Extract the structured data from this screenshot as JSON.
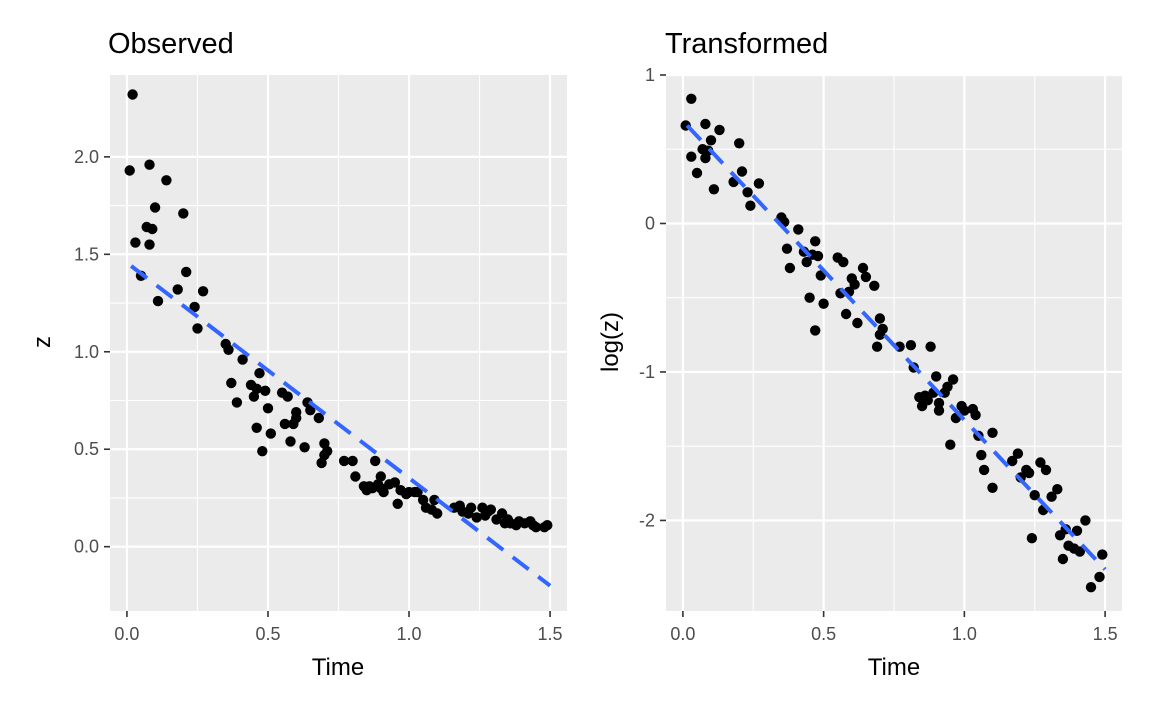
{
  "chart_data": [
    {
      "type": "scatter",
      "title": "Observed",
      "xlabel": "Time",
      "ylabel": "z",
      "xlim": [
        -0.06,
        1.56
      ],
      "ylim": [
        -0.33,
        2.42
      ],
      "x_ticks": [
        0.0,
        0.5,
        1.0,
        1.5
      ],
      "x_tick_labels": [
        "0.0",
        "0.5",
        "1.0",
        "1.5"
      ],
      "y_ticks": [
        0.0,
        0.5,
        1.0,
        1.5,
        2.0
      ],
      "y_tick_labels": [
        "0.0",
        "0.5",
        "1.0",
        "1.5",
        "2.0"
      ],
      "grid": true,
      "fit_line": {
        "style": "dashed",
        "color": "#3366FF",
        "x": [
          0.015,
          1.5
        ],
        "y": [
          1.44,
          -0.2
        ]
      },
      "points": [
        [
          0.01,
          1.93
        ],
        [
          0.02,
          2.32
        ],
        [
          0.03,
          1.56
        ],
        [
          0.05,
          1.39
        ],
        [
          0.07,
          1.64
        ],
        [
          0.08,
          1.96
        ],
        [
          0.08,
          1.55
        ],
        [
          0.09,
          1.63
        ],
        [
          0.1,
          1.74
        ],
        [
          0.11,
          1.26
        ],
        [
          0.14,
          1.88
        ],
        [
          0.18,
          1.32
        ],
        [
          0.2,
          1.71
        ],
        [
          0.21,
          1.41
        ],
        [
          0.24,
          1.23
        ],
        [
          0.25,
          1.12
        ],
        [
          0.27,
          1.31
        ],
        [
          0.35,
          1.04
        ],
        [
          0.36,
          1.01
        ],
        [
          0.37,
          0.84
        ],
        [
          0.39,
          0.74
        ],
        [
          0.41,
          0.96
        ],
        [
          0.44,
          0.83
        ],
        [
          0.45,
          0.77
        ],
        [
          0.46,
          0.61
        ],
        [
          0.46,
          0.81
        ],
        [
          0.47,
          0.89
        ],
        [
          0.48,
          0.49
        ],
        [
          0.49,
          0.8
        ],
        [
          0.5,
          0.71
        ],
        [
          0.51,
          0.58
        ],
        [
          0.55,
          0.79
        ],
        [
          0.56,
          0.63
        ],
        [
          0.57,
          0.77
        ],
        [
          0.58,
          0.54
        ],
        [
          0.59,
          0.63
        ],
        [
          0.6,
          0.69
        ],
        [
          0.6,
          0.66
        ],
        [
          0.63,
          0.51
        ],
        [
          0.64,
          0.74
        ],
        [
          0.65,
          0.7
        ],
        [
          0.68,
          0.66
        ],
        [
          0.69,
          0.43
        ],
        [
          0.7,
          0.53
        ],
        [
          0.7,
          0.47
        ],
        [
          0.71,
          0.49
        ],
        [
          0.77,
          0.44
        ],
        [
          0.8,
          0.44
        ],
        [
          0.81,
          0.36
        ],
        [
          0.84,
          0.31
        ],
        [
          0.85,
          0.29
        ],
        [
          0.86,
          0.31
        ],
        [
          0.87,
          0.3
        ],
        [
          0.88,
          0.44
        ],
        [
          0.89,
          0.32
        ],
        [
          0.9,
          0.36
        ],
        [
          0.9,
          0.3
        ],
        [
          0.91,
          0.28
        ],
        [
          0.93,
          0.32
        ],
        [
          0.95,
          0.33
        ],
        [
          0.96,
          0.22
        ],
        [
          0.97,
          0.29
        ],
        [
          0.99,
          0.27
        ],
        [
          1.0,
          0.28
        ],
        [
          1.02,
          0.28
        ],
        [
          1.03,
          0.28
        ],
        [
          1.05,
          0.24
        ],
        [
          1.06,
          0.2
        ],
        [
          1.08,
          0.19
        ],
        [
          1.09,
          0.24
        ],
        [
          1.1,
          0.17
        ],
        [
          1.16,
          0.2
        ],
        [
          1.18,
          0.21
        ],
        [
          1.19,
          0.18
        ],
        [
          1.21,
          0.17
        ],
        [
          1.22,
          0.2
        ],
        [
          1.24,
          0.15
        ],
        [
          1.26,
          0.2
        ],
        [
          1.27,
          0.16
        ],
        [
          1.28,
          0.18
        ],
        [
          1.29,
          0.19
        ],
        [
          1.31,
          0.14
        ],
        [
          1.33,
          0.17
        ],
        [
          1.34,
          0.12
        ],
        [
          1.35,
          0.14
        ],
        [
          1.36,
          0.12
        ],
        [
          1.38,
          0.11
        ],
        [
          1.39,
          0.13
        ],
        [
          1.41,
          0.12
        ],
        [
          1.43,
          0.13
        ],
        [
          1.44,
          0.11
        ],
        [
          1.45,
          0.1
        ],
        [
          1.48,
          0.1
        ],
        [
          1.49,
          0.11
        ]
      ]
    },
    {
      "type": "scatter",
      "title": "Transformed",
      "xlabel": "Time",
      "ylabel": "log(z)",
      "xlim": [
        -0.06,
        1.56
      ],
      "ylim": [
        -2.61,
        1.0
      ],
      "x_ticks": [
        0.0,
        0.5,
        1.0,
        1.5
      ],
      "x_tick_labels": [
        "0.0",
        "0.5",
        "1.0",
        "1.5"
      ],
      "y_ticks": [
        1,
        0,
        -1,
        -2
      ],
      "y_tick_labels": [
        "1",
        "0",
        "-1",
        "-2"
      ],
      "grid": true,
      "fit_line": {
        "style": "dashed",
        "color": "#3366FF",
        "x": [
          0.015,
          1.5
        ],
        "y": [
          0.66,
          -2.33
        ]
      },
      "points": [
        [
          0.01,
          0.66
        ],
        [
          0.03,
          0.84
        ],
        [
          0.03,
          0.45
        ],
        [
          0.05,
          0.34
        ],
        [
          0.07,
          0.5
        ],
        [
          0.08,
          0.67
        ],
        [
          0.08,
          0.44
        ],
        [
          0.09,
          0.49
        ],
        [
          0.1,
          0.56
        ],
        [
          0.11,
          0.23
        ],
        [
          0.13,
          0.63
        ],
        [
          0.18,
          0.28
        ],
        [
          0.2,
          0.54
        ],
        [
          0.21,
          0.35
        ],
        [
          0.23,
          0.21
        ],
        [
          0.24,
          0.12
        ],
        [
          0.27,
          0.27
        ],
        [
          0.35,
          0.04
        ],
        [
          0.36,
          0.01
        ],
        [
          0.37,
          -0.17
        ],
        [
          0.38,
          -0.3
        ],
        [
          0.41,
          -0.04
        ],
        [
          0.43,
          -0.19
        ],
        [
          0.44,
          -0.26
        ],
        [
          0.45,
          -0.5
        ],
        [
          0.46,
          -0.21
        ],
        [
          0.47,
          -0.12
        ],
        [
          0.47,
          -0.72
        ],
        [
          0.48,
          -0.22
        ],
        [
          0.49,
          -0.35
        ],
        [
          0.5,
          -0.54
        ],
        [
          0.55,
          -0.23
        ],
        [
          0.56,
          -0.47
        ],
        [
          0.57,
          -0.26
        ],
        [
          0.58,
          -0.61
        ],
        [
          0.59,
          -0.46
        ],
        [
          0.6,
          -0.37
        ],
        [
          0.61,
          -0.41
        ],
        [
          0.62,
          -0.67
        ],
        [
          0.64,
          -0.3
        ],
        [
          0.65,
          -0.36
        ],
        [
          0.68,
          -0.42
        ],
        [
          0.69,
          -0.83
        ],
        [
          0.7,
          -0.64
        ],
        [
          0.7,
          -0.75
        ],
        [
          0.71,
          -0.71
        ],
        [
          0.77,
          -0.83
        ],
        [
          0.81,
          -0.82
        ],
        [
          0.82,
          -0.97
        ],
        [
          0.84,
          -1.17
        ],
        [
          0.85,
          -1.23
        ],
        [
          0.86,
          -1.16
        ],
        [
          0.87,
          -1.19
        ],
        [
          0.88,
          -0.83
        ],
        [
          0.89,
          -1.14
        ],
        [
          0.9,
          -1.03
        ],
        [
          0.91,
          -1.21
        ],
        [
          0.91,
          -1.26
        ],
        [
          0.93,
          -1.14
        ],
        [
          0.94,
          -1.1
        ],
        [
          0.95,
          -1.49
        ],
        [
          0.96,
          -1.05
        ],
        [
          0.97,
          -1.31
        ],
        [
          0.99,
          -1.23
        ],
        [
          1.0,
          -1.26
        ],
        [
          1.03,
          -1.25
        ],
        [
          1.04,
          -1.29
        ],
        [
          1.05,
          -1.43
        ],
        [
          1.06,
          -1.56
        ],
        [
          1.07,
          -1.66
        ],
        [
          1.1,
          -1.41
        ],
        [
          1.1,
          -1.78
        ],
        [
          1.17,
          -1.6
        ],
        [
          1.19,
          -1.55
        ],
        [
          1.2,
          -1.71
        ],
        [
          1.22,
          -1.66
        ],
        [
          1.23,
          -1.68
        ],
        [
          1.24,
          -2.12
        ],
        [
          1.25,
          -1.83
        ],
        [
          1.27,
          -1.61
        ],
        [
          1.28,
          -1.93
        ],
        [
          1.29,
          -1.66
        ],
        [
          1.31,
          -1.84
        ],
        [
          1.33,
          -1.79
        ],
        [
          1.34,
          -2.1
        ],
        [
          1.35,
          -2.26
        ],
        [
          1.36,
          -2.06
        ],
        [
          1.37,
          -2.17
        ],
        [
          1.39,
          -2.19
        ],
        [
          1.4,
          -2.07
        ],
        [
          1.41,
          -2.21
        ],
        [
          1.43,
          -2.0
        ],
        [
          1.45,
          -2.45
        ],
        [
          1.48,
          -2.38
        ],
        [
          1.49,
          -2.23
        ]
      ]
    }
  ]
}
